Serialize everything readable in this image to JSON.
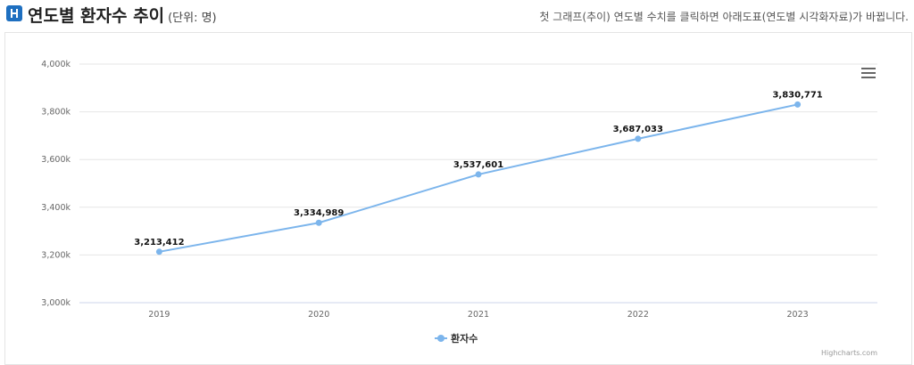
{
  "header": {
    "title": "연도별 환자수 추이",
    "unit": "(단위: 명)",
    "hint": "첫 그래프(추이) 연도별 수치를 클릭하면 아래도표(연도별 시각화자료)가 바뀝니다."
  },
  "menu": {
    "icon": "hamburger-menu-icon"
  },
  "credit": "Highcharts.com",
  "colors": {
    "series": "#7cb5ec",
    "logo": "#1e6fc0"
  },
  "chart_data": {
    "type": "line",
    "categories": [
      "2019",
      "2020",
      "2021",
      "2022",
      "2023"
    ],
    "series": [
      {
        "name": "환자수",
        "values": [
          3213412,
          3334989,
          3537601,
          3687033,
          3830771
        ]
      }
    ],
    "data_labels": [
      "3,213,412",
      "3,334,989",
      "3,537,601",
      "3,687,033",
      "3,830,771"
    ],
    "ylim": [
      3000000,
      4000000
    ],
    "yticks": [
      "3,000k",
      "3,200k",
      "3,400k",
      "3,600k",
      "3,800k",
      "4,000k"
    ],
    "grid": true,
    "legend": "bottom-center"
  }
}
